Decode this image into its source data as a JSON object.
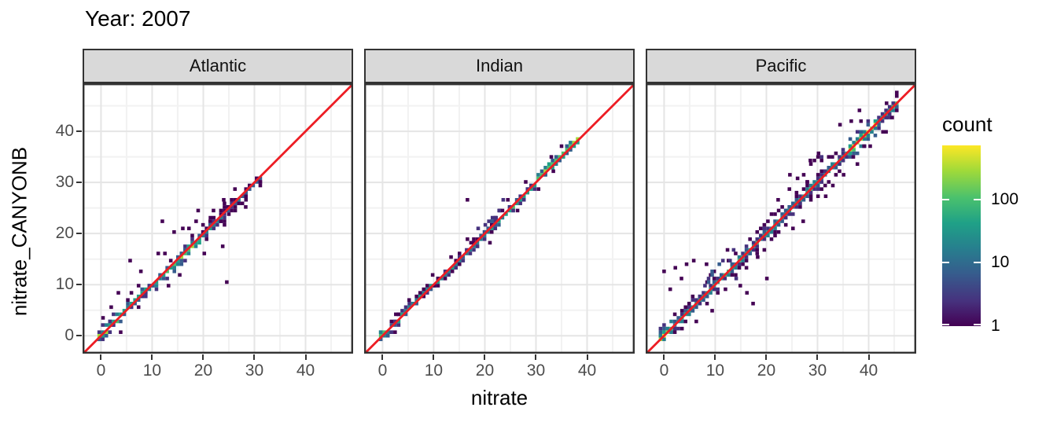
{
  "title": "Year: 2007",
  "axes": {
    "x_label": "nitrate",
    "y_label": "nitrate_CANYONB",
    "x_ticks": [
      0,
      10,
      20,
      30,
      40
    ],
    "y_ticks": [
      0,
      10,
      20,
      30,
      40
    ],
    "minor_ticks": [
      5,
      15,
      25,
      35,
      45
    ],
    "x_range": [
      -3.6,
      49.3
    ],
    "y_range": [
      -3.5,
      49.4
    ]
  },
  "legend": {
    "title": "count",
    "tick_labels": [
      "100",
      "10",
      "1"
    ],
    "tick_values": [
      100,
      10,
      1
    ],
    "scale": "log10",
    "max_log10": 2.85,
    "gradient": "viridis"
  },
  "colors": {
    "abline": "#ED1D24",
    "strip_fill": "#D9D9D9",
    "panel_border": "#333333",
    "grid_major": "#E5E5E5",
    "grid_minor": "#F2F2F2",
    "tick_text": "#4D4D4D",
    "viridis": [
      "#440154",
      "#46327e",
      "#365c8d",
      "#277f8e",
      "#1fa187",
      "#4ac16d",
      "#a0da39",
      "#fde725"
    ]
  },
  "chart_data": {
    "type": "heatmap",
    "subtype": "bin2d-faceted-scatter",
    "title": "Year: 2007",
    "xlabel": "nitrate",
    "ylabel": "nitrate_CANYONB",
    "x_domain": [
      -3.6,
      49.3
    ],
    "y_domain": [
      -3.5,
      49.4
    ],
    "bin_size": 0.7,
    "count_scale": {
      "type": "log10",
      "ticks": [
        1,
        10,
        100
      ],
      "approx_max": 700
    },
    "abline": {
      "slope": 1,
      "intercept": 0,
      "color": "#ED1D24"
    },
    "facets": [
      {
        "name": "Atlantic",
        "seed": 7,
        "data_range": [
          -0.6,
          31
        ],
        "band": {
          "t0": -0.35,
          "t1": 31.2,
          "core_stops": [
            [
              -1,
              1.4,
              5
            ],
            [
              1.4,
              5,
              4
            ],
            [
              5,
              14,
              4
            ],
            [
              14,
              19.6,
              5
            ],
            [
              19.6,
              24,
              3
            ],
            [
              24,
              31.5,
              2
            ]
          ],
          "spread_stops": [
            [
              -1,
              3,
              2
            ],
            [
              3,
              8,
              3
            ],
            [
              8,
              20,
              3
            ],
            [
              20,
              27,
              3
            ],
            [
              27,
              31.5,
              2
            ]
          ],
          "side_prob": 0.5,
          "second_core_prob": 0.85,
          "far_prob": 0.07,
          "shift_stops": [],
          "clusters": []
        },
        "outliers": [
          [
            12,
            22.3
          ],
          [
            14.3,
            20.6
          ],
          [
            16,
            21.2
          ],
          [
            18.6,
            22.1
          ],
          [
            19,
            24.4
          ],
          [
            24.6,
            10.8
          ],
          [
            23.8,
            17.8
          ],
          [
            21.4,
            23.4
          ],
          [
            25,
            23.9
          ],
          [
            5.7,
            14.9
          ],
          [
            3.4,
            8.3
          ],
          [
            26.2,
            28.4
          ],
          [
            28.3,
            25.2
          ],
          [
            24,
            26.6
          ],
          [
            22,
            24.7
          ],
          [
            7.8,
            12.5
          ],
          [
            12.5,
            15.8
          ],
          [
            2,
            5.5
          ],
          [
            0.4,
            3.4
          ],
          [
            13.2,
            9.9
          ],
          [
            15.4,
            11.9
          ],
          [
            20.2,
            16.4
          ],
          [
            17.2,
            21
          ],
          [
            11.2,
            16.2
          ]
        ]
      },
      {
        "name": "Indian",
        "seed": 13,
        "data_range": [
          -0.6,
          38
        ],
        "band": {
          "t0": -0.35,
          "t1": 38.2,
          "core_stops": [
            [
              -1,
              1,
              5
            ],
            [
              1,
              15,
              3
            ],
            [
              15,
              24,
              3
            ],
            [
              24,
              31,
              4
            ],
            [
              31,
              38.5,
              5
            ]
          ],
          "spread_stops": [
            [
              -1,
              15,
              1
            ],
            [
              15,
              24,
              2
            ],
            [
              24,
              38.5,
              1
            ]
          ],
          "side_prob": 0.38,
          "second_core_prob": 0.6,
          "far_prob": 0.02,
          "shift_stops": [
            [
              30,
              38.5,
              0.5
            ]
          ],
          "clusters": [
            {
              "t0": 16.6,
              "t1": 23.6,
              "offMin": 0.7,
              "offMax": 2.9,
              "density": 0.6,
              "intensity": 0
            },
            {
              "t0": 20,
              "t1": 23,
              "offMin": 0.5,
              "offMax": 1.5,
              "density": 0.5,
              "intensity": 1
            }
          ]
        },
        "outliers": [
          [
            16.6,
            26.6
          ],
          [
            26.4,
            24.2
          ],
          [
            9.8,
            11.9
          ],
          [
            5.2,
            7
          ],
          [
            21,
            17.9
          ],
          [
            24.5,
            26.8
          ],
          [
            28,
            30.2
          ],
          [
            33.4,
            32.2
          ],
          [
            30.5,
            28.6
          ],
          [
            13.4,
            15.3
          ],
          [
            2.6,
            4.4
          ],
          [
            35,
            36.8
          ],
          [
            33,
            34.8
          ]
        ]
      },
      {
        "name": "Pacific",
        "seed": 21,
        "data_range": [
          -1,
          46
        ],
        "band": {
          "t0": -0.7,
          "t1": 46.2,
          "core_stops": [
            [
              -1.2,
              1.6,
              6
            ],
            [
              1.6,
              6,
              4
            ],
            [
              6,
              28,
              4
            ],
            [
              28,
              36,
              4
            ],
            [
              36,
              41.5,
              6
            ],
            [
              41.5,
              46.5,
              4
            ]
          ],
          "spread_stops": [
            [
              -1.2,
              5,
              3
            ],
            [
              5,
              25,
              4
            ],
            [
              25,
              35,
              5
            ],
            [
              35,
              46.5,
              3
            ]
          ],
          "side_prob": 0.58,
          "second_core_prob": 0.92,
          "far_prob": 0.12,
          "shift_stops": [],
          "clusters": [
            {
              "t0": 28,
              "t1": 33.5,
              "offMin": 1.4,
              "offMax": 5,
              "density": 0.45,
              "intensity": 0
            },
            {
              "t0": 12,
              "t1": 22,
              "offMin": -4.3,
              "offMax": -2,
              "density": 0.3,
              "intensity": 0
            },
            {
              "t0": 8,
              "t1": 14,
              "offMin": 1.4,
              "offMax": 3.6,
              "density": 0.5,
              "intensity": 1
            },
            {
              "t0": 37,
              "t1": 45,
              "offMin": -2.6,
              "offMax": -1,
              "density": 0.4,
              "intensity": 0
            }
          ]
        },
        "outliers": [
          [
            0,
            12.3
          ],
          [
            2.2,
            13.5
          ],
          [
            4.4,
            13.8
          ],
          [
            5.8,
            14.4
          ],
          [
            8.3,
            13.8
          ],
          [
            1.2,
            9.1
          ],
          [
            3.4,
            11
          ],
          [
            6.3,
            2.6
          ],
          [
            9.4,
            4.8
          ],
          [
            17.4,
            6.4
          ],
          [
            16.2,
            8.1
          ],
          [
            20.1,
            11.2
          ],
          [
            14.9,
            9.6
          ],
          [
            24.6,
            31.4
          ],
          [
            26.1,
            31
          ],
          [
            33,
            29.1
          ],
          [
            34.4,
            41.6
          ],
          [
            30.2,
            35.9
          ],
          [
            28.6,
            34.1
          ],
          [
            36.6,
            42
          ],
          [
            38.2,
            44
          ],
          [
            42.8,
            40.2
          ],
          [
            44.6,
            42.8
          ],
          [
            22.3,
            26.8
          ],
          [
            27.2,
            22.1
          ],
          [
            31.6,
            27.4
          ],
          [
            35.1,
            31.8
          ],
          [
            40.3,
            36.9
          ],
          [
            43.5,
            45.2
          ],
          [
            12.4,
            16.9
          ]
        ]
      }
    ]
  }
}
